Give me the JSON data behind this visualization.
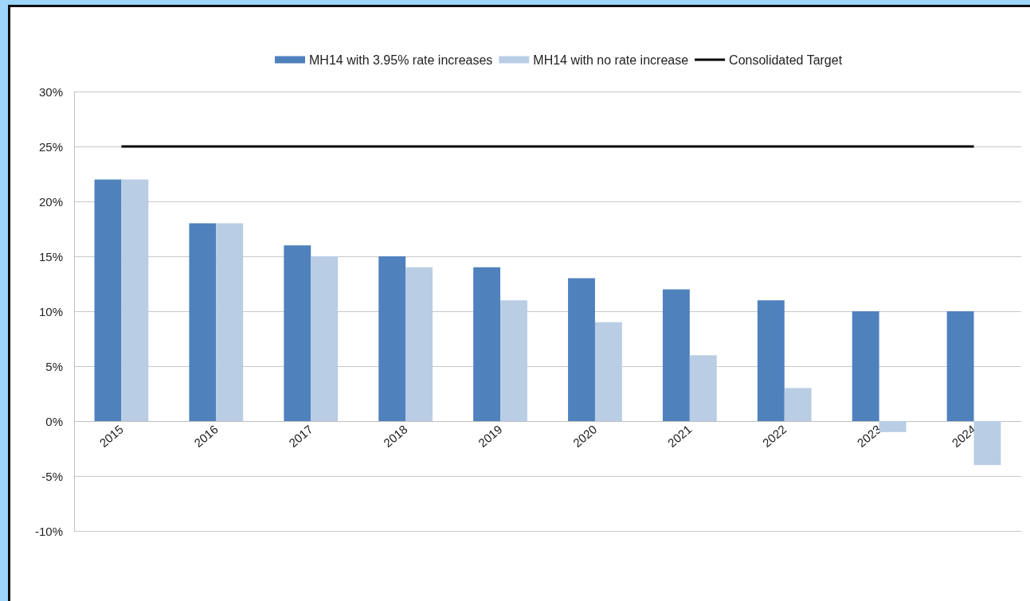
{
  "chart_data": {
    "type": "bar",
    "categories": [
      "2015",
      "2016",
      "2017",
      "2018",
      "2019",
      "2020",
      "2021",
      "2022",
      "2023",
      "2024"
    ],
    "series": [
      {
        "name": "MH14 with 3.95% rate increases",
        "color": "#4f81bd",
        "values": [
          22,
          18,
          16,
          15,
          14,
          13,
          12,
          11,
          10,
          10
        ]
      },
      {
        "name": "MH14 with no rate increase",
        "color": "#b9cde5",
        "values": [
          22,
          18,
          15,
          14,
          11,
          9,
          6,
          3,
          -1,
          -4
        ]
      },
      {
        "name": "Consolidated Target",
        "type": "line",
        "color": "#000000",
        "values": [
          25,
          25,
          25,
          25,
          25,
          25,
          25,
          25,
          25,
          25
        ]
      }
    ],
    "ylim": [
      -10,
      30
    ],
    "yticks": [
      {
        "value": -10,
        "label": "-10%"
      },
      {
        "value": -5,
        "label": "-5%"
      },
      {
        "value": 0,
        "label": "0%"
      },
      {
        "value": 5,
        "label": "5%"
      },
      {
        "value": 10,
        "label": "10%"
      },
      {
        "value": 15,
        "label": "15%"
      },
      {
        "value": 20,
        "label": "20%"
      },
      {
        "value": 25,
        "label": "25%"
      },
      {
        "value": 30,
        "label": "30%"
      }
    ],
    "grid": "y",
    "legend": "top",
    "marker": "none",
    "line_style": "solid"
  }
}
